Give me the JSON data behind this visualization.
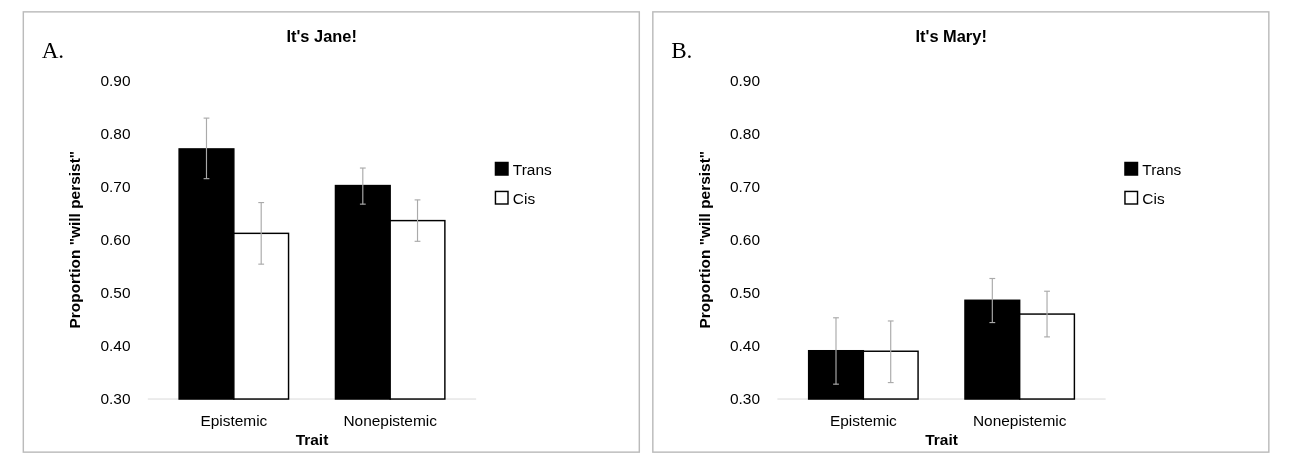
{
  "chart_data": [
    {
      "type": "bar",
      "title": "It's Jane!",
      "xlabel": "Trait",
      "ylabel": "Proportion \"will persist\"",
      "annotations": [
        "A."
      ],
      "categories": [
        "Epistemic",
        "Nonepistemic"
      ],
      "ylim": [
        0.3,
        0.9
      ],
      "yticks": [
        {
          "value": 0.3,
          "label": "0.30"
        },
        {
          "value": 0.4,
          "label": "0.40"
        },
        {
          "value": 0.5,
          "label": "0.50"
        },
        {
          "value": 0.6,
          "label": "0.60"
        },
        {
          "value": 0.7,
          "label": "0.70"
        },
        {
          "value": 0.8,
          "label": "0.80"
        },
        {
          "value": 0.9,
          "label": "0.90"
        }
      ],
      "legend": "right",
      "series": [
        {
          "name": "Trans",
          "color": "#000000",
          "values": [
            0.771,
            0.702
          ],
          "errors": [
            [
              0.715,
              0.829
            ],
            [
              0.667,
              0.735
            ]
          ]
        },
        {
          "name": "Cis",
          "color": "#ffffff",
          "values": [
            0.612,
            0.636
          ],
          "errors": [
            [
              0.554,
              0.67
            ],
            [
              0.597,
              0.675
            ]
          ]
        }
      ]
    },
    {
      "type": "bar",
      "title": "It's Mary!",
      "xlabel": "Trait",
      "ylabel": "Proportion \"will persist\"",
      "annotations": [
        "B."
      ],
      "categories": [
        "Epistemic",
        "Nonepistemic"
      ],
      "ylim": [
        0.3,
        0.9
      ],
      "yticks": [
        {
          "value": 0.3,
          "label": "0.30"
        },
        {
          "value": 0.4,
          "label": "0.40"
        },
        {
          "value": 0.5,
          "label": "0.50"
        },
        {
          "value": 0.6,
          "label": "0.60"
        },
        {
          "value": 0.7,
          "label": "0.70"
        },
        {
          "value": 0.8,
          "label": "0.80"
        },
        {
          "value": 0.9,
          "label": "0.90"
        }
      ],
      "legend": "right",
      "series": [
        {
          "name": "Trans",
          "color": "#000000",
          "values": [
            0.391,
            0.486
          ],
          "errors": [
            [
              0.328,
              0.453
            ],
            [
              0.444,
              0.527
            ]
          ]
        },
        {
          "name": "Cis",
          "color": "#ffffff",
          "values": [
            0.39,
            0.46
          ],
          "errors": [
            [
              0.331,
              0.447
            ],
            [
              0.417,
              0.503
            ]
          ]
        }
      ]
    }
  ]
}
